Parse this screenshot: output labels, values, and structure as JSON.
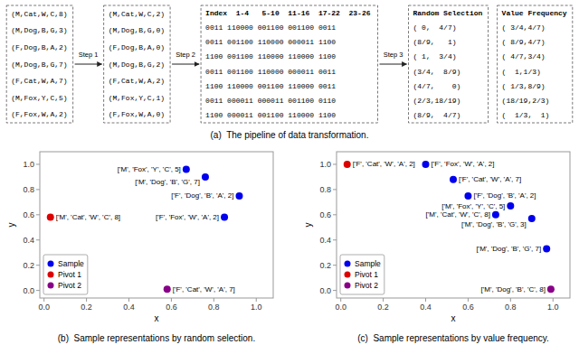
{
  "chart_data": [
    {
      "type": "diagram",
      "caption": "(a)  The pipeline of data transformation.",
      "boxes": [
        {
          "lines": [
            "(M,Cat,W,C,8)",
            "(M,Dog,B,G,3)",
            "(F,Dog,B,A,2)",
            "(M,Dog,B,G,7)",
            "(F,Cat,W,A,7)",
            "(M,Fox,Y,C,5)",
            "(F,Fox,W,A,2)"
          ]
        },
        {
          "lines": [
            "(M,Cat,W,C,2)",
            "(M,Dog,B,G,0)",
            "(F,Dog,B,A,0)",
            "(M,Dog,B,G,2)",
            "(F,Cat,W,A,2)",
            "(M,Fox,Y,C,1)",
            "(F,Fox,W,A,0)"
          ]
        },
        {
          "header": "Index  1-4   5-10  11-16  17-22  23-26",
          "lines": [
            "0011 110000 001100 001100 0011",
            "0011 001100 110000 000011 1100",
            "1100 001100 110000 110000 1100",
            "0011 001100 110000 000011 0011",
            "1100 110000 001100 110000 0011",
            "0011 000011 000011 001100 0110",
            "1100 000011 001100 110000 1100"
          ]
        },
        {
          "header": "Random Selection",
          "lines": [
            "( 0,  4/7)",
            "(8/9,   1)",
            "( 1,  3/4)",
            "(3/4,  8/9)",
            "(4/7,    0)",
            "(2/3,18/19)",
            "(8/9,  4/7)"
          ]
        },
        {
          "header": "Value Frequency",
          "lines": [
            "( 3/4,4/7)",
            "( 8/9,4/7)",
            "( 4/7,3/4)",
            "(  1,1/3)",
            "( 1/3,8/9)",
            "(18/19,2/3)",
            "(  1/3,  1)"
          ]
        }
      ],
      "steps": [
        "Step 1",
        "Step 2",
        "Step 3"
      ]
    },
    {
      "type": "scatter",
      "caption": "(b)  Sample representations by random selection.",
      "x_label": "x",
      "y_label": "y",
      "xlim": [
        -0.02,
        1.08
      ],
      "ylim": [
        -0.06,
        1.1
      ],
      "xticks": [
        {
          "value": 0,
          "label": "0.0"
        },
        0.2,
        0.4,
        0.6,
        0.8,
        {
          "value": 1,
          "label": "1.0"
        }
      ],
      "yticks": [
        {
          "value": 0,
          "label": "0.0"
        },
        0.2,
        0.4,
        0.6,
        0.8,
        {
          "value": 1,
          "label": "1.0"
        }
      ],
      "grid": false,
      "legend": "lower left",
      "series": [
        {
          "name": "Sample",
          "color": "#0000ee",
          "x": [
            0.76,
            0.67,
            0.92,
            0.85
          ],
          "values": [
            0.9,
            0.96,
            0.75,
            0.58
          ],
          "labels": [
            "['M', 'Dog', 'B', 'G', 7]",
            "['M', 'Fox', 'Y', 'C', 5]",
            "['F', 'Dog', 'B', 'A', 2]",
            "['F', 'Fox', 'W', 'A', 2]"
          ]
        },
        {
          "name": "Pivot 1",
          "color": "#dd0000",
          "x": [
            0.03
          ],
          "values": [
            0.58
          ],
          "labels": [
            "['M', 'Cat', 'W', 'C', 8]"
          ]
        },
        {
          "name": "Pivot 2",
          "color": "#880088",
          "x": [
            0.58
          ],
          "values": [
            0.01
          ],
          "labels": [
            "['F', 'Cat', 'W', 'A', 7]"
          ]
        }
      ]
    },
    {
      "type": "scatter",
      "caption": "(c)  Sample representations by value frequency.",
      "x_label": "x",
      "y_label": "y",
      "xlim": [
        -0.02,
        1.08
      ],
      "ylim": [
        -0.06,
        1.1
      ],
      "xticks": [
        {
          "value": 0,
          "label": "0.0"
        },
        0.2,
        0.4,
        0.6,
        0.8,
        {
          "value": 1,
          "label": "1.0"
        }
      ],
      "yticks": [
        {
          "value": 0,
          "label": "0.0"
        },
        0.2,
        0.4,
        0.6,
        0.8,
        {
          "value": 1,
          "label": "1.0"
        }
      ],
      "grid": false,
      "legend": "lower left",
      "series": [
        {
          "name": "Sample",
          "color": "#0000ee",
          "x": [
            0.4,
            0.53,
            0.6,
            0.8,
            0.73,
            0.9,
            0.97
          ],
          "values": [
            1.0,
            0.88,
            0.75,
            0.67,
            0.6,
            0.57,
            0.33
          ],
          "labels": [
            "['F', 'Fox', 'W', 'A', 2]",
            "['F', 'Cat', 'W', 'A', 7]",
            "['F', 'Dog', 'B', 'A', 2]",
            "['M', 'Fox', 'Y', 'C', 5]",
            "['M', 'Cat', 'W', 'C', 8]",
            "['M', 'Dog', 'B', 'G', 3]",
            "['M', 'Dog', 'B', 'G', 7]"
          ]
        },
        {
          "name": "Pivot 1",
          "color": "#dd0000",
          "x": [
            0.03
          ],
          "values": [
            1.0
          ],
          "labels": [
            "['F', 'Cat', 'W', 'A', 2]"
          ]
        },
        {
          "name": "Pivot 2",
          "color": "#880088",
          "x": [
            0.99
          ],
          "values": [
            0.01
          ],
          "labels": [
            "['M', 'Dog', 'B', 'C', 8]"
          ]
        }
      ]
    }
  ]
}
